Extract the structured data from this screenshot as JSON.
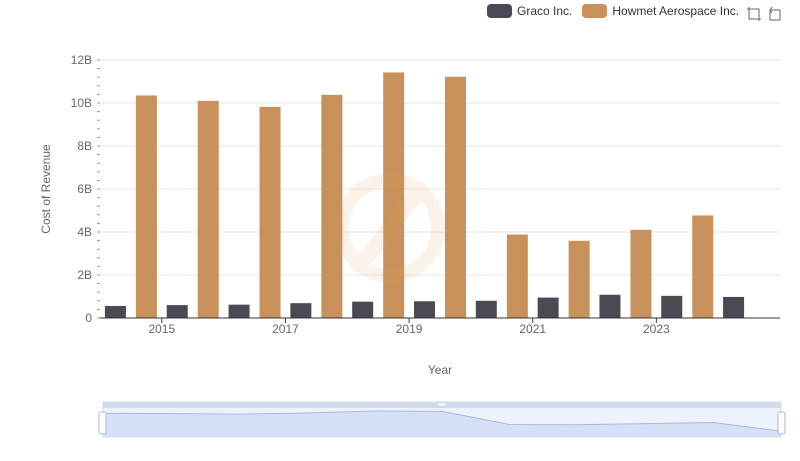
{
  "legend": {
    "items": [
      {
        "label": "Graco Inc.",
        "color": "#4a4a55"
      },
      {
        "label": "Howmet Aerospace Inc.",
        "color": "#c8915c"
      }
    ]
  },
  "toolbox": {
    "icons": [
      "zoom-icon",
      "restore-icon"
    ]
  },
  "chart_data": {
    "type": "bar",
    "categories": [
      "2014",
      "2015",
      "2016",
      "2017",
      "2018",
      "2019",
      "2020",
      "2021",
      "2022",
      "2023",
      "2024"
    ],
    "x_tick_labels": [
      "2015",
      "2017",
      "2019",
      "2021",
      "2023"
    ],
    "y_tick_labels": [
      "0",
      "2B",
      "4B",
      "6B",
      "8B",
      "10B",
      "12B"
    ],
    "xlabel": "Year",
    "ylabel": "Cost of Revenue",
    "ylim": [
      0,
      12000000000
    ],
    "grid": true,
    "legend_position": "top-right",
    "series": [
      {
        "name": "Graco Inc.",
        "color": "#4a4a55",
        "values": [
          560000000,
          600000000,
          620000000,
          690000000,
          760000000,
          780000000,
          800000000,
          950000000,
          1080000000,
          1030000000,
          980000000
        ]
      },
      {
        "name": "Howmet Aerospace Inc.",
        "color": "#c8915c",
        "values": [
          10350000000,
          10100000000,
          9820000000,
          10380000000,
          11420000000,
          11220000000,
          3880000000,
          3590000000,
          4100000000,
          4770000000,
          null
        ]
      }
    ],
    "datazoom": {
      "range": [
        0,
        100
      ]
    }
  }
}
